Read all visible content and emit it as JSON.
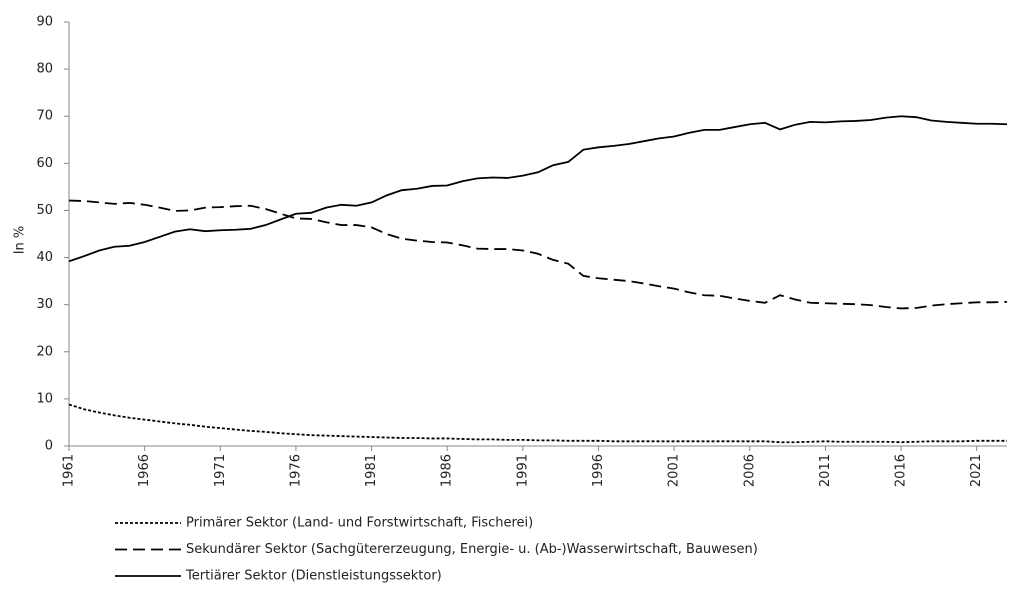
{
  "chart_data": {
    "type": "line",
    "y_label": "In %",
    "x": [
      1961,
      1962,
      1963,
      1964,
      1965,
      1966,
      1967,
      1968,
      1969,
      1970,
      1971,
      1972,
      1973,
      1974,
      1975,
      1976,
      1977,
      1978,
      1979,
      1980,
      1981,
      1982,
      1983,
      1984,
      1985,
      1986,
      1987,
      1988,
      1989,
      1990,
      1991,
      1992,
      1993,
      1994,
      1995,
      1996,
      1997,
      1998,
      1999,
      2000,
      2001,
      2002,
      2003,
      2004,
      2005,
      2006,
      2007,
      2008,
      2009,
      2010,
      2011,
      2012,
      2013,
      2014,
      2015,
      2016,
      2017,
      2018,
      2019,
      2020,
      2021,
      2022,
      2023
    ],
    "xlim": [
      1961,
      2023
    ],
    "xticks": [
      1961,
      1966,
      1971,
      1976,
      1981,
      1986,
      1991,
      1996,
      2001,
      2006,
      2011,
      2016,
      2021
    ],
    "ylim": [
      0,
      90
    ],
    "yticks": [
      0,
      10,
      20,
      30,
      40,
      50,
      60,
      70,
      80,
      90
    ],
    "legend": "bottom",
    "series": [
      {
        "name": "Primärer Sektor (Land- und Forstwirtschaft, Fischerei)",
        "color": "#000000",
        "dash": "dotted",
        "values": [
          8.8,
          7.8,
          7.1,
          6.5,
          6.0,
          5.6,
          5.2,
          4.8,
          4.5,
          4.1,
          3.8,
          3.5,
          3.2,
          3.0,
          2.7,
          2.5,
          2.3,
          2.2,
          2.1,
          2.0,
          1.9,
          1.8,
          1.7,
          1.7,
          1.6,
          1.6,
          1.5,
          1.4,
          1.4,
          1.3,
          1.3,
          1.2,
          1.2,
          1.1,
          1.1,
          1.1,
          1.0,
          1.0,
          1.0,
          1.0,
          1.0,
          1.0,
          1.0,
          1.0,
          1.0,
          1.0,
          1.0,
          0.8,
          0.8,
          0.9,
          1.0,
          0.9,
          0.9,
          0.9,
          0.9,
          0.8,
          0.9,
          1.0,
          1.0,
          1.0,
          1.1,
          1.1,
          1.1
        ]
      },
      {
        "name": "Sekundärer Sektor (Sachgütererzeugung, Energie- u. (Ab-)Wasserwirtschaft, Bauwesen)",
        "color": "#000000",
        "dash": "dashed",
        "values": [
          52.1,
          52.0,
          51.7,
          51.4,
          51.6,
          51.2,
          50.6,
          49.9,
          50.0,
          50.6,
          50.7,
          50.9,
          51.0,
          50.3,
          49.3,
          48.3,
          48.2,
          47.5,
          46.9,
          46.9,
          46.4,
          45.0,
          44.0,
          43.6,
          43.3,
          43.2,
          42.6,
          41.9,
          41.8,
          41.8,
          41.5,
          40.8,
          39.5,
          38.7,
          36.1,
          35.6,
          35.3,
          35.0,
          34.5,
          33.9,
          33.4,
          32.6,
          32.0,
          31.9,
          31.3,
          30.8,
          30.4,
          32.0,
          31.1,
          30.4,
          30.3,
          30.2,
          30.1,
          29.9,
          29.5,
          29.2,
          29.3,
          29.8,
          30.1,
          30.3,
          30.5,
          30.5,
          30.6
        ]
      },
      {
        "name": "Tertiärer Sektor (Dienstleistungssektor)",
        "color": "#000000",
        "dash": "solid",
        "values": [
          39.2,
          40.3,
          41.5,
          42.3,
          42.5,
          43.3,
          44.4,
          45.5,
          46.0,
          45.6,
          45.8,
          45.9,
          46.1,
          46.9,
          48.1,
          49.3,
          49.5,
          50.6,
          51.2,
          51.0,
          51.7,
          53.2,
          54.3,
          54.6,
          55.2,
          55.3,
          56.2,
          56.8,
          57.0,
          56.9,
          57.4,
          58.1,
          59.6,
          60.3,
          62.9,
          63.4,
          63.7,
          64.1,
          64.7,
          65.3,
          65.7,
          66.5,
          67.1,
          67.1,
          67.7,
          68.3,
          68.6,
          67.2,
          68.2,
          68.8,
          68.7,
          68.9,
          69.0,
          69.2,
          69.7,
          70.0,
          69.8,
          69.1,
          68.8,
          68.6,
          68.4,
          68.4,
          68.3
        ]
      }
    ]
  }
}
